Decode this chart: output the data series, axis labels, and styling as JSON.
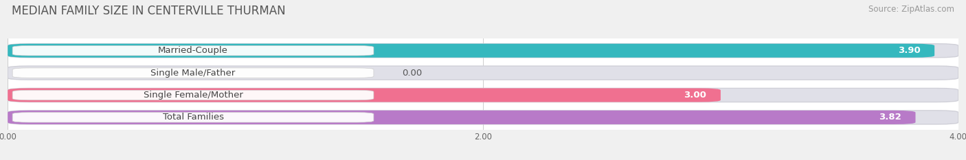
{
  "title": "MEDIAN FAMILY SIZE IN CENTERVILLE THURMAN",
  "source": "Source: ZipAtlas.com",
  "categories": [
    "Married-Couple",
    "Single Male/Father",
    "Single Female/Mother",
    "Total Families"
  ],
  "values": [
    3.9,
    0.0,
    3.0,
    3.82
  ],
  "bar_colors": [
    "#35b8be",
    "#a0b8e0",
    "#f07090",
    "#b87ac8"
  ],
  "xlim_data": [
    0.0,
    4.0
  ],
  "xticks": [
    0.0,
    2.0,
    4.0
  ],
  "xticklabels": [
    "0.00",
    "2.00",
    "4.00"
  ],
  "bar_height": 0.62,
  "outer_bg": "#f0f0f0",
  "inner_bg": "#ffffff",
  "track_color": "#e0e0e8",
  "title_fontsize": 12,
  "source_fontsize": 8.5,
  "label_fontsize": 9.5,
  "value_fontsize": 9.5
}
